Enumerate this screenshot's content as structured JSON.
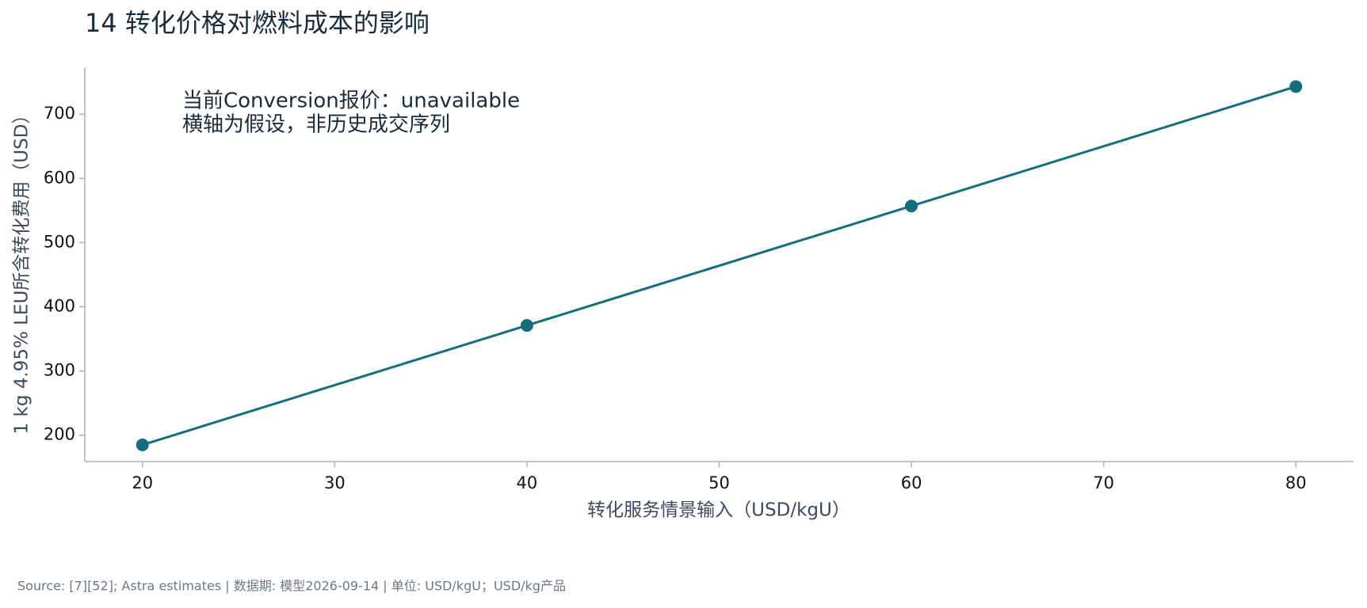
{
  "chart_data": {
    "type": "line",
    "title": "14  转化价格对燃料成本的影响",
    "annotation_lines": [
      "当前Conversion报价：unavailable",
      "横轴为假设，非历史成交序列"
    ],
    "x_label": "转化服务情景输入（USD/kgU）",
    "y_label": "1 kg 4.95% LEU所含转化费用（USD）",
    "footer": "Source: [7][52]; Astra estimates | 数据期: 模型2026-09-14 | 单位: USD/kgU；USD/kg产品",
    "x": [
      20,
      40,
      60,
      80
    ],
    "series": [
      {
        "name": "转化费用",
        "color": "#146e7e",
        "values": [
          185,
          371,
          557,
          743
        ]
      }
    ],
    "xlim": [
      17,
      83
    ],
    "xticks": [
      20,
      30,
      40,
      50,
      60,
      70,
      80
    ],
    "ylim": [
      159,
      773
    ],
    "yticks": [
      200,
      300,
      400,
      500,
      600,
      700
    ],
    "grid": false,
    "legend": false
  }
}
